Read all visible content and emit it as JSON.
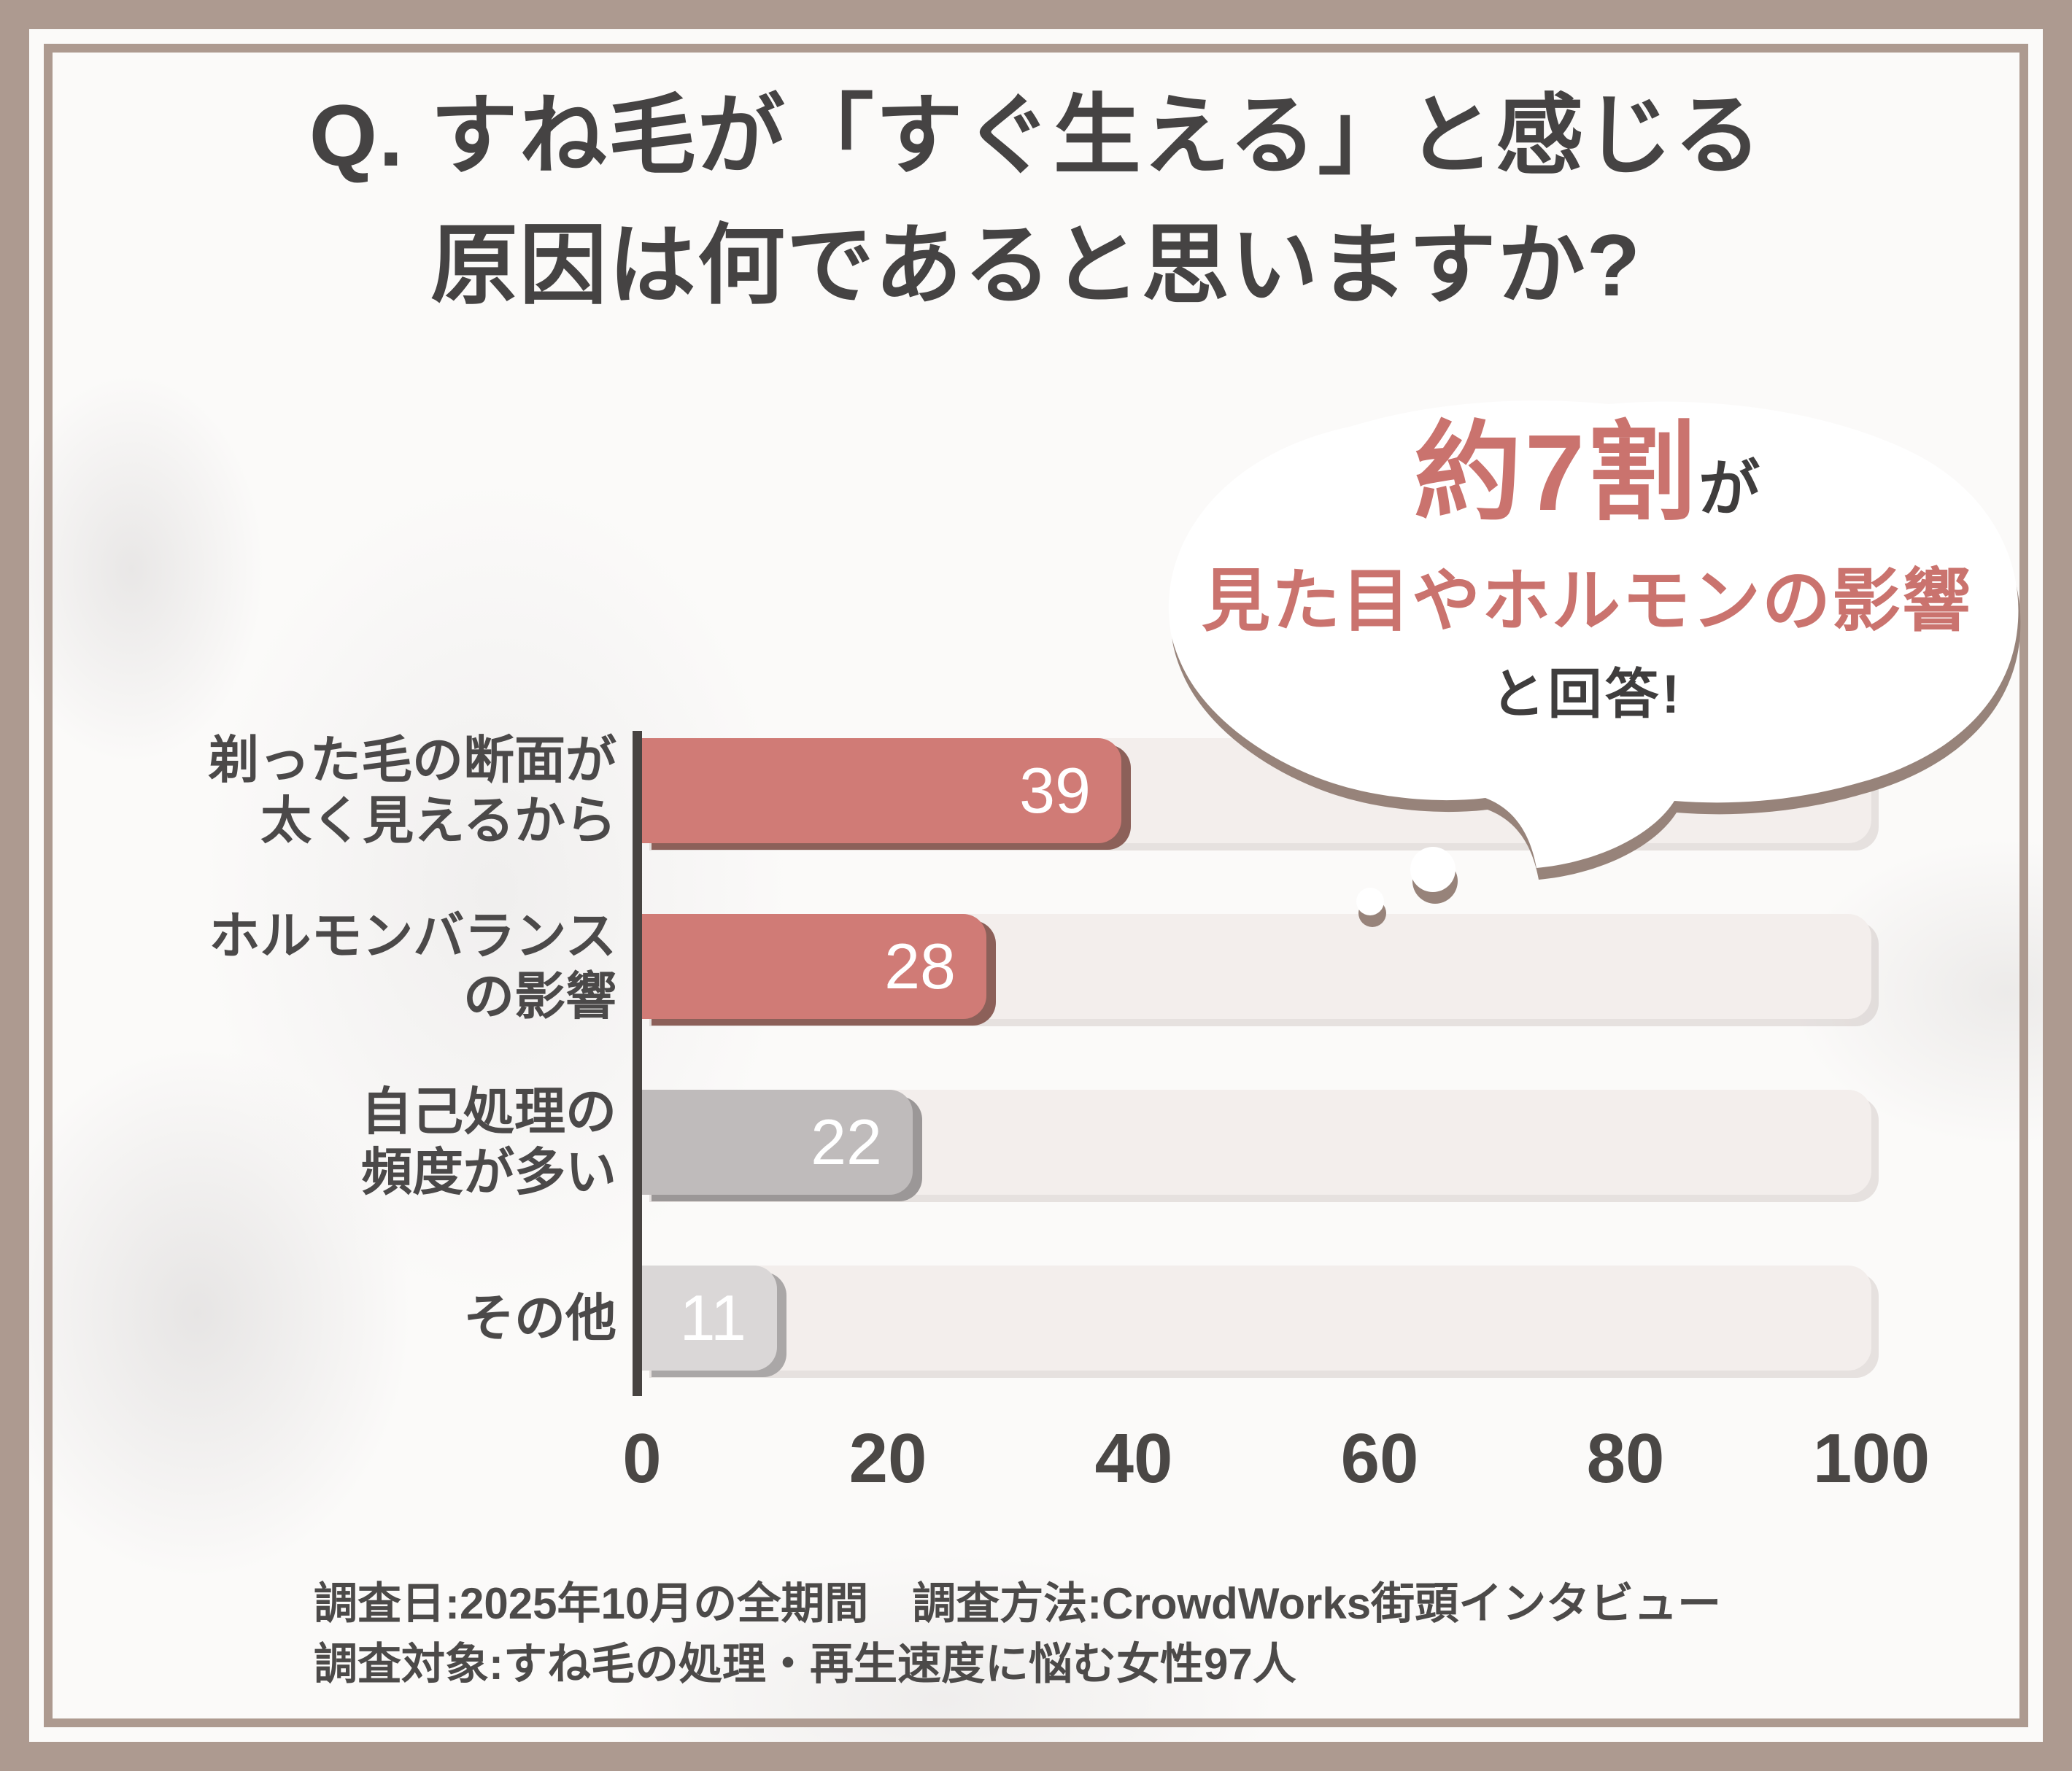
{
  "title": {
    "line1": "Q. すね毛が「すぐ生える」と感じる",
    "line2": "原因は何であると思いますか?"
  },
  "bubble": {
    "highlight": "約7割",
    "highlight_suffix": "が",
    "line2": "見た目やホルモンの影響",
    "line3": "と回答!"
  },
  "chart_data": {
    "type": "bar",
    "orientation": "horizontal",
    "title": "すね毛が「すぐ生える」と感じる原因",
    "categories": [
      "剃った毛の断面が太く見えるから",
      "ホルモンバランスの影響",
      "自己処理の頻度が多い",
      "その他"
    ],
    "category_lines": [
      [
        "剃った毛の断面が",
        "太く見えるから"
      ],
      [
        "ホルモンバランス",
        "の影響"
      ],
      [
        "自己処理の",
        "頻度が多い"
      ],
      [
        "その他"
      ]
    ],
    "values": [
      39,
      28,
      22,
      11
    ],
    "xlim": [
      0,
      100
    ],
    "x_ticks": [
      "0",
      "20",
      "40",
      "60",
      "80",
      "100"
    ],
    "grid": false,
    "legend": null,
    "bar_colors": [
      "#d07b76",
      "#d07b76",
      "#bfbbbb",
      "#dad7d7"
    ],
    "bar_shadow_colors": [
      "#8c6059",
      "#8c6059",
      "#9b9797",
      "#aaa7a7"
    ],
    "track_color": "#f3eeec",
    "annotation": "約7割が見た目やホルモンの影響と回答!"
  },
  "footer": {
    "line1": "調査日:2025年10月の全期間　調査方法:CrowdWorks街頭インタビュー",
    "line2": "調査対象:すね毛の処理・再生速度に悩む女性97人"
  },
  "colors": {
    "frame": "#ad9a90",
    "panel_bg": "#fbfaf9",
    "accent_red": "#d07b76",
    "accent_pink_text": "#ca736e",
    "text_dark": "#454343",
    "track": "#f3eeec",
    "bubble_shadow": "#97837a",
    "axis": "#474341",
    "value_text": "#ffffff"
  }
}
